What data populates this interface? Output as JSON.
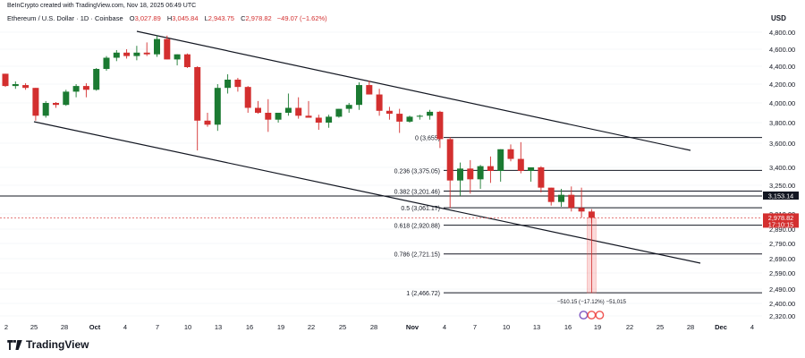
{
  "credit": "BeInCrypto created with TradingView.com, Nov 18, 2025 06:49 UTC",
  "legend": {
    "symbol": "Ethereum / U.S. Dollar · 1D · Coinbase",
    "o_label": "O",
    "o": "3,027.89",
    "h_label": "H",
    "h": "3,045.84",
    "l_label": "L",
    "l": "2,943.75",
    "c_label": "C",
    "c": "2,978.82",
    "change": "−49.07 (−1.62%)"
  },
  "currency": "USD",
  "brand": "TradingView",
  "colors": {
    "up": "#1b7a32",
    "down": "#d32f2f",
    "line": "#131722",
    "grid": "#eceff3"
  },
  "chart_data": {
    "type": "candlestick",
    "y_ticks": [
      "4,800.00",
      "4,600.00",
      "4,400.00",
      "4,200.00",
      "4,000.00",
      "3,800.00",
      "3,600.00",
      "3,400.00",
      "3,250.00",
      "3,010.00",
      "2,890.00",
      "2,790.00",
      "2,690.00",
      "2,590.00",
      "2,490.00",
      "2,400.00",
      "2,320.00"
    ],
    "x_ticks": [
      "2",
      "25",
      "28",
      "Oct",
      "4",
      "7",
      "10",
      "13",
      "16",
      "19",
      "22",
      "25",
      "28",
      "Nov",
      "4",
      "7",
      "10",
      "13",
      "16",
      "19",
      "22",
      "25",
      "28",
      "Dec",
      "4"
    ],
    "candles": [
      [
        4316,
        4316,
        4170,
        4180
      ],
      [
        4180,
        4230,
        4150,
        4200
      ],
      [
        4190,
        4210,
        4140,
        4160
      ],
      [
        4160,
        4160,
        3820,
        3870
      ],
      [
        3870,
        4020,
        3850,
        4000
      ],
      [
        4000,
        4010,
        3950,
        3980
      ],
      [
        3980,
        4140,
        3970,
        4120
      ],
      [
        4120,
        4200,
        4060,
        4180
      ],
      [
        4180,
        4210,
        4060,
        4140
      ],
      [
        4140,
        4380,
        4130,
        4370
      ],
      [
        4370,
        4520,
        4350,
        4500
      ],
      [
        4500,
        4590,
        4460,
        4560
      ],
      [
        4560,
        4600,
        4490,
        4520
      ],
      [
        4520,
        4640,
        4470,
        4560
      ],
      [
        4560,
        4680,
        4520,
        4540
      ],
      [
        4540,
        4760,
        4510,
        4720
      ],
      [
        4720,
        4760,
        4480,
        4480
      ],
      [
        4480,
        4540,
        4410,
        4540
      ],
      [
        4540,
        4550,
        4380,
        4390
      ],
      [
        4390,
        4400,
        3540,
        3820
      ],
      [
        3820,
        3900,
        3760,
        3780
      ],
      [
        3780,
        4200,
        3720,
        4160
      ],
      [
        4160,
        4310,
        4100,
        4250
      ],
      [
        4250,
        4270,
        4120,
        4170
      ],
      [
        4170,
        4180,
        3900,
        3950
      ],
      [
        3950,
        4020,
        3890,
        3900
      ],
      [
        3900,
        4040,
        3710,
        3830
      ],
      [
        3830,
        3900,
        3800,
        3900
      ],
      [
        3900,
        4100,
        3870,
        3950
      ],
      [
        3950,
        4060,
        3840,
        3870
      ],
      [
        3870,
        4020,
        3850,
        3850
      ],
      [
        3850,
        3880,
        3730,
        3800
      ],
      [
        3800,
        3880,
        3750,
        3860
      ],
      [
        3860,
        3940,
        3850,
        3940
      ],
      [
        3940,
        4000,
        3900,
        3980
      ],
      [
        3980,
        4220,
        3930,
        4190
      ],
      [
        4190,
        4240,
        4090,
        4090
      ],
      [
        4090,
        4150,
        3870,
        3920
      ],
      [
        3920,
        3960,
        3830,
        3890
      ],
      [
        3890,
        3940,
        3700,
        3810
      ],
      [
        3810,
        3870,
        3800,
        3860
      ],
      [
        3860,
        3880,
        3830,
        3870
      ],
      [
        3870,
        3930,
        3830,
        3910
      ],
      [
        3910,
        3920,
        3560,
        3640
      ],
      [
        3640,
        3660,
        3060,
        3290
      ],
      [
        3290,
        3440,
        3160,
        3390
      ],
      [
        3390,
        3460,
        3180,
        3300
      ],
      [
        3300,
        3420,
        3220,
        3410
      ],
      [
        3410,
        3490,
        3270,
        3370
      ],
      [
        3370,
        3550,
        3280,
        3550
      ],
      [
        3550,
        3590,
        3450,
        3470
      ],
      [
        3470,
        3610,
        3350,
        3370
      ],
      [
        3370,
        3400,
        3280,
        3400
      ],
      [
        3400,
        3410,
        3190,
        3230
      ],
      [
        3230,
        3230,
        3080,
        3110
      ],
      [
        3110,
        3220,
        3070,
        3170
      ],
      [
        3170,
        3240,
        3030,
        3060
      ],
      [
        3060,
        3230,
        2980,
        3030
      ],
      [
        3030,
        3050,
        2940,
        2980
      ]
    ],
    "levels": [
      {
        "label": "0 (3,655)",
        "value": 3655
      },
      {
        "label": "0.236 (3,375.05)",
        "value": 3375.05
      },
      {
        "label": "0.382 (3,201.46)",
        "value": 3201.46
      },
      {
        "label": "0.5 (3,061.17)",
        "value": 3061.17
      },
      {
        "label": "0.618 (2,920.88)",
        "value": 2920.88
      },
      {
        "label": "0.786 (2,721.15)",
        "value": 2721.15
      },
      {
        "label": "1 (2,466.72)",
        "value": 2466.72
      }
    ],
    "support_label": "3,153.14",
    "last_price": "2,978.82",
    "countdown": "17:10:15",
    "measure_label": "−510.15 (−17.12%) −51,015"
  }
}
